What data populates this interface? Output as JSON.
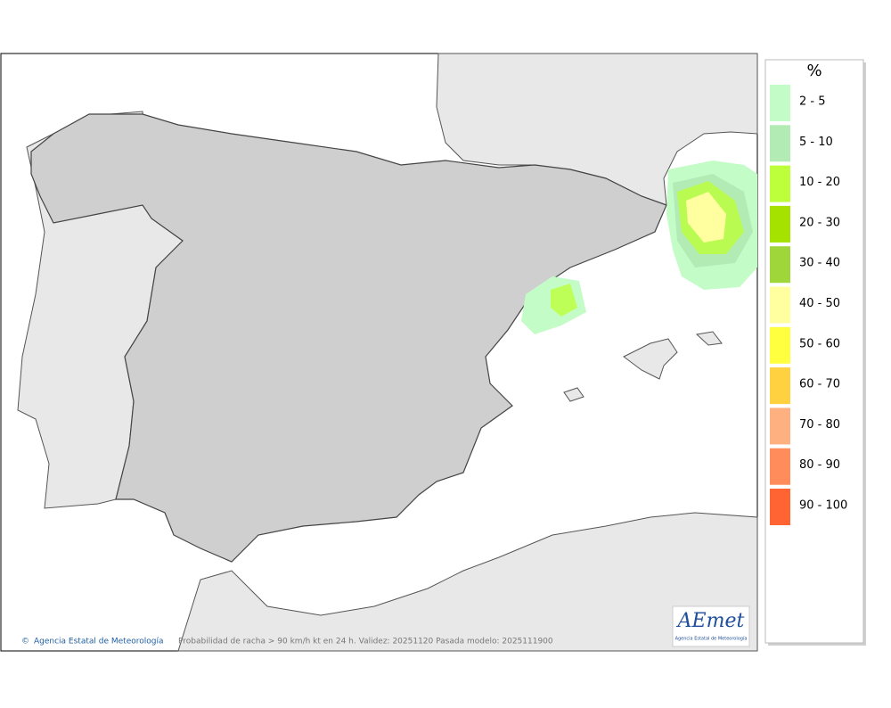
{
  "legend": {
    "title": "%",
    "items": [
      {
        "label": "2 - 5",
        "color": "#c4fcc8"
      },
      {
        "label": "5 - 10",
        "color": "#b2ebb4"
      },
      {
        "label": "10 - 20",
        "color": "#bcff3a"
      },
      {
        "label": "20 - 30",
        "color": "#a6e200"
      },
      {
        "label": "30 - 40",
        "color": "#9fd63a"
      },
      {
        "label": "40 - 50",
        "color": "#ffffa0"
      },
      {
        "label": "50 - 60",
        "color": "#ffff40"
      },
      {
        "label": "60 - 70",
        "color": "#ffd040"
      },
      {
        "label": "70 - 80",
        "color": "#ffb080"
      },
      {
        "label": "80 - 90",
        "color": "#ff8c5a"
      },
      {
        "label": "90 - 100",
        "color": "#ff6432"
      }
    ]
  },
  "footer": {
    "credit": "Agencia Estatal de Meteorología",
    "caption": "Probabilidad de racha > 90 km/h kt en 24 h. Validez: 20251120 Pasada modelo: 2025111900"
  },
  "logo": {
    "name": "AEmet",
    "subtitle": "Agencia Estatal de Meteorología"
  }
}
